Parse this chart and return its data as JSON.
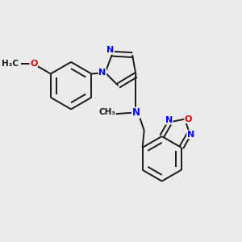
{
  "background_color": "#ebebeb",
  "bond_color": "#1a1a1a",
  "n_color": "#0000ee",
  "o_color": "#dd0000",
  "lw": 1.4,
  "figsize": [
    3.0,
    3.0
  ],
  "dpi": 100,
  "xlim": [
    0,
    10
  ],
  "ylim": [
    0,
    10
  ]
}
